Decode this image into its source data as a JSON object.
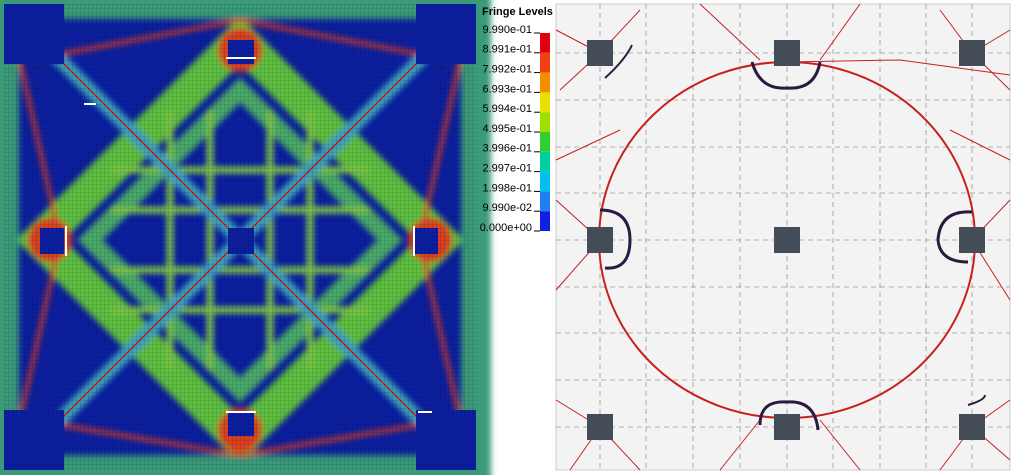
{
  "legend": {
    "title": "Fringe Levels",
    "levels": [
      "9.990e-01",
      "8.991e-01",
      "7.992e-01",
      "6.993e-01",
      "5.994e-01",
      "4.995e-01",
      "3.996e-01",
      "2.997e-01",
      "1.998e-01",
      "9.990e-02",
      "0.000e+00"
    ]
  }
}
